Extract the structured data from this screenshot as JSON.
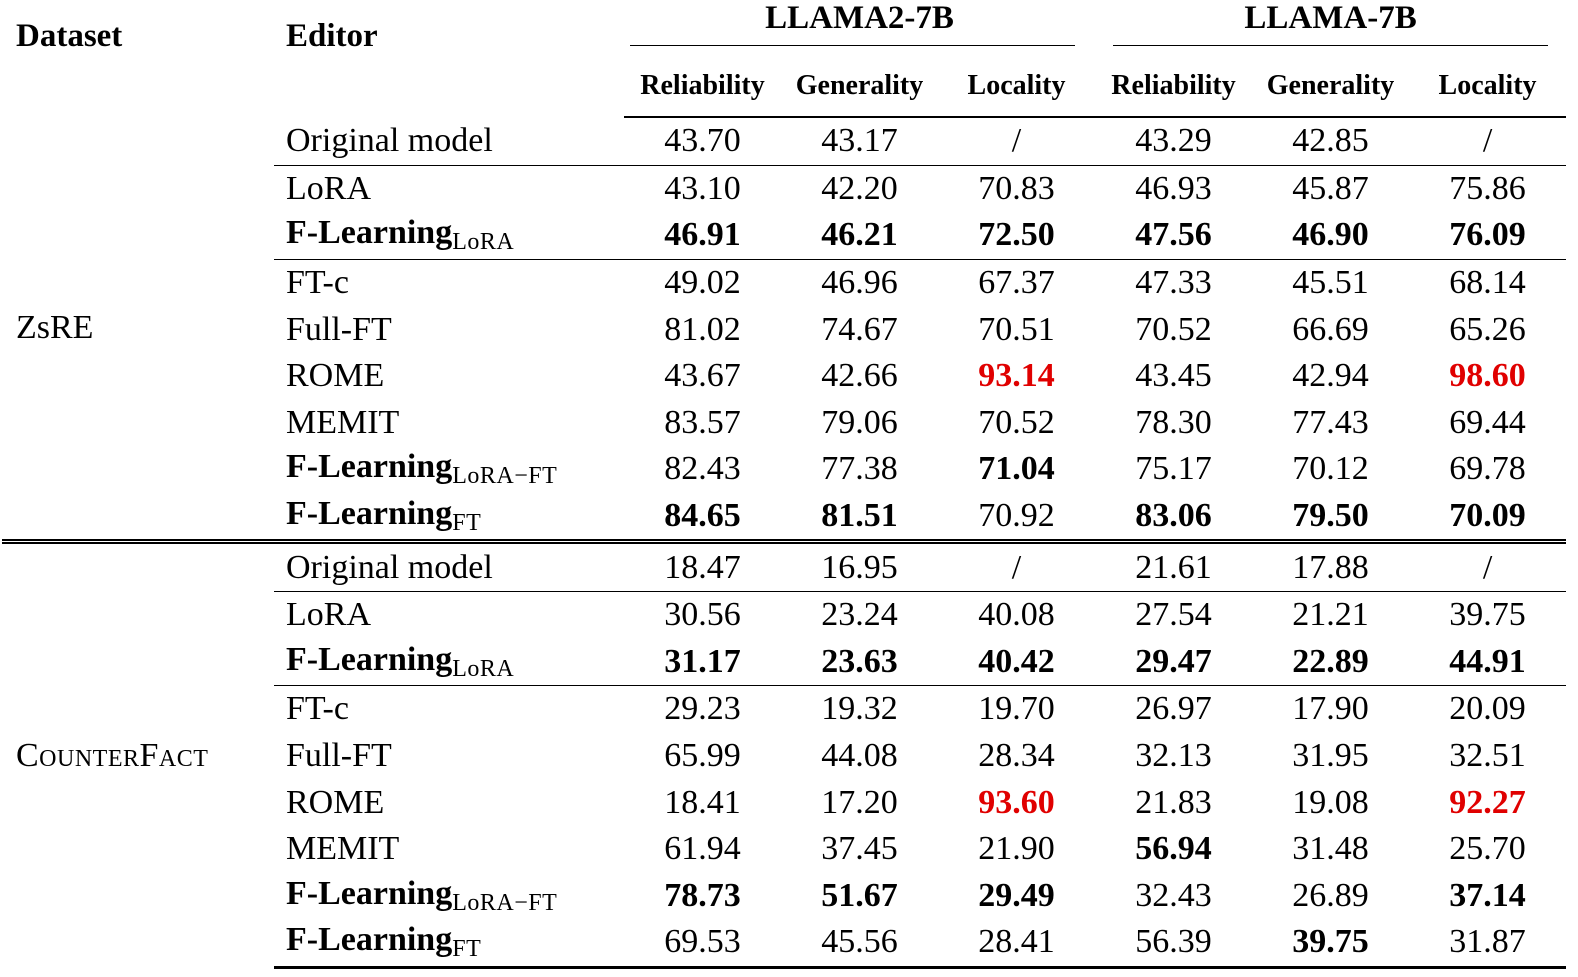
{
  "header": {
    "dataset": "Dataset",
    "editor": "Editor",
    "groups": [
      "LLAMA2-7B",
      "LLAMA-7B"
    ],
    "metrics": [
      "Reliability",
      "Generality",
      "Locality",
      "Reliability",
      "Generality",
      "Locality"
    ]
  },
  "colors": {
    "highlight": "#e00000"
  },
  "blocks": [
    {
      "dataset": "ZsRE",
      "rows": [
        {
          "editor": "Original model",
          "sub": "",
          "editor_bold": false,
          "rule": false,
          "values": [
            "43.70",
            "43.17",
            "/",
            "43.29",
            "42.85",
            "/"
          ],
          "style": [
            "",
            "",
            "",
            "",
            "",
            ""
          ]
        },
        {
          "editor": "LoRA",
          "sub": "",
          "editor_bold": false,
          "rule": true,
          "values": [
            "43.10",
            "42.20",
            "70.83",
            "46.93",
            "45.87",
            "75.86"
          ],
          "style": [
            "",
            "",
            "",
            "",
            "",
            ""
          ]
        },
        {
          "editor": "F-Learning",
          "sub": "LoRA",
          "editor_bold": true,
          "rule": false,
          "values": [
            "46.91",
            "46.21",
            "72.50",
            "47.56",
            "46.90",
            "76.09"
          ],
          "style": [
            "bold",
            "bold",
            "bold",
            "bold",
            "bold",
            "bold"
          ]
        },
        {
          "editor": "FT-c",
          "sub": "",
          "editor_bold": false,
          "rule": true,
          "values": [
            "49.02",
            "46.96",
            "67.37",
            "47.33",
            "45.51",
            "68.14"
          ],
          "style": [
            "",
            "",
            "",
            "",
            "",
            ""
          ]
        },
        {
          "editor": "Full-FT",
          "sub": "",
          "editor_bold": false,
          "rule": false,
          "values": [
            "81.02",
            "74.67",
            "70.51",
            "70.52",
            "66.69",
            "65.26"
          ],
          "style": [
            "",
            "",
            "",
            "",
            "",
            ""
          ]
        },
        {
          "editor": "ROME",
          "sub": "",
          "editor_bold": false,
          "rule": false,
          "values": [
            "43.67",
            "42.66",
            "93.14",
            "43.45",
            "42.94",
            "98.60"
          ],
          "style": [
            "",
            "",
            "red",
            "",
            "",
            "red"
          ]
        },
        {
          "editor": "MEMIT",
          "sub": "",
          "editor_bold": false,
          "rule": false,
          "values": [
            "83.57",
            "79.06",
            "70.52",
            "78.30",
            "77.43",
            "69.44"
          ],
          "style": [
            "",
            "",
            "",
            "",
            "",
            ""
          ]
        },
        {
          "editor": "F-Learning",
          "sub": "LoRA−FT",
          "editor_bold": true,
          "rule": false,
          "values": [
            "82.43",
            "77.38",
            "71.04",
            "75.17",
            "70.12",
            "69.78"
          ],
          "style": [
            "",
            "",
            "bold",
            "",
            "",
            ""
          ]
        },
        {
          "editor": "F-Learning",
          "sub": "FT",
          "editor_bold": true,
          "rule": false,
          "values": [
            "84.65",
            "81.51",
            "70.92",
            "83.06",
            "79.50",
            "70.09"
          ],
          "style": [
            "bold",
            "bold",
            "",
            "bold",
            "bold",
            "bold"
          ]
        }
      ]
    },
    {
      "dataset": "CounterFact",
      "rows": [
        {
          "editor": "Original model",
          "sub": "",
          "editor_bold": false,
          "rule": false,
          "values": [
            "18.47",
            "16.95",
            "/",
            "21.61",
            "17.88",
            "/"
          ],
          "style": [
            "",
            "",
            "",
            "",
            "",
            ""
          ]
        },
        {
          "editor": "LoRA",
          "sub": "",
          "editor_bold": false,
          "rule": true,
          "values": [
            "30.56",
            "23.24",
            "40.08",
            "27.54",
            "21.21",
            "39.75"
          ],
          "style": [
            "",
            "",
            "",
            "",
            "",
            ""
          ]
        },
        {
          "editor": "F-Learning",
          "sub": "LoRA",
          "editor_bold": true,
          "rule": false,
          "values": [
            "31.17",
            "23.63",
            "40.42",
            "29.47",
            "22.89",
            "44.91"
          ],
          "style": [
            "bold",
            "bold",
            "bold",
            "bold",
            "bold",
            "bold"
          ]
        },
        {
          "editor": "FT-c",
          "sub": "",
          "editor_bold": false,
          "rule": true,
          "values": [
            "29.23",
            "19.32",
            "19.70",
            "26.97",
            "17.90",
            "20.09"
          ],
          "style": [
            "",
            "",
            "",
            "",
            "",
            ""
          ]
        },
        {
          "editor": "Full-FT",
          "sub": "",
          "editor_bold": false,
          "rule": false,
          "values": [
            "65.99",
            "44.08",
            "28.34",
            "32.13",
            "31.95",
            "32.51"
          ],
          "style": [
            "",
            "",
            "",
            "",
            "",
            ""
          ]
        },
        {
          "editor": "ROME",
          "sub": "",
          "editor_bold": false,
          "rule": false,
          "values": [
            "18.41",
            "17.20",
            "93.60",
            "21.83",
            "19.08",
            "92.27"
          ],
          "style": [
            "",
            "",
            "red",
            "",
            "",
            "red"
          ]
        },
        {
          "editor": "MEMIT",
          "sub": "",
          "editor_bold": false,
          "rule": false,
          "values": [
            "61.94",
            "37.45",
            "21.90",
            "56.94",
            "31.48",
            "25.70"
          ],
          "style": [
            "",
            "",
            "",
            "bold",
            "",
            ""
          ]
        },
        {
          "editor": "F-Learning",
          "sub": "LoRA−FT",
          "editor_bold": true,
          "rule": false,
          "values": [
            "78.73",
            "51.67",
            "29.49",
            "32.43",
            "26.89",
            "37.14"
          ],
          "style": [
            "bold",
            "bold",
            "bold",
            "",
            "",
            "bold"
          ]
        },
        {
          "editor": "F-Learning",
          "sub": "FT",
          "editor_bold": true,
          "rule": false,
          "values": [
            "69.53",
            "45.56",
            "28.41",
            "56.39",
            "39.75",
            "31.87"
          ],
          "style": [
            "",
            "",
            "",
            "",
            "bold",
            ""
          ]
        }
      ]
    }
  ]
}
